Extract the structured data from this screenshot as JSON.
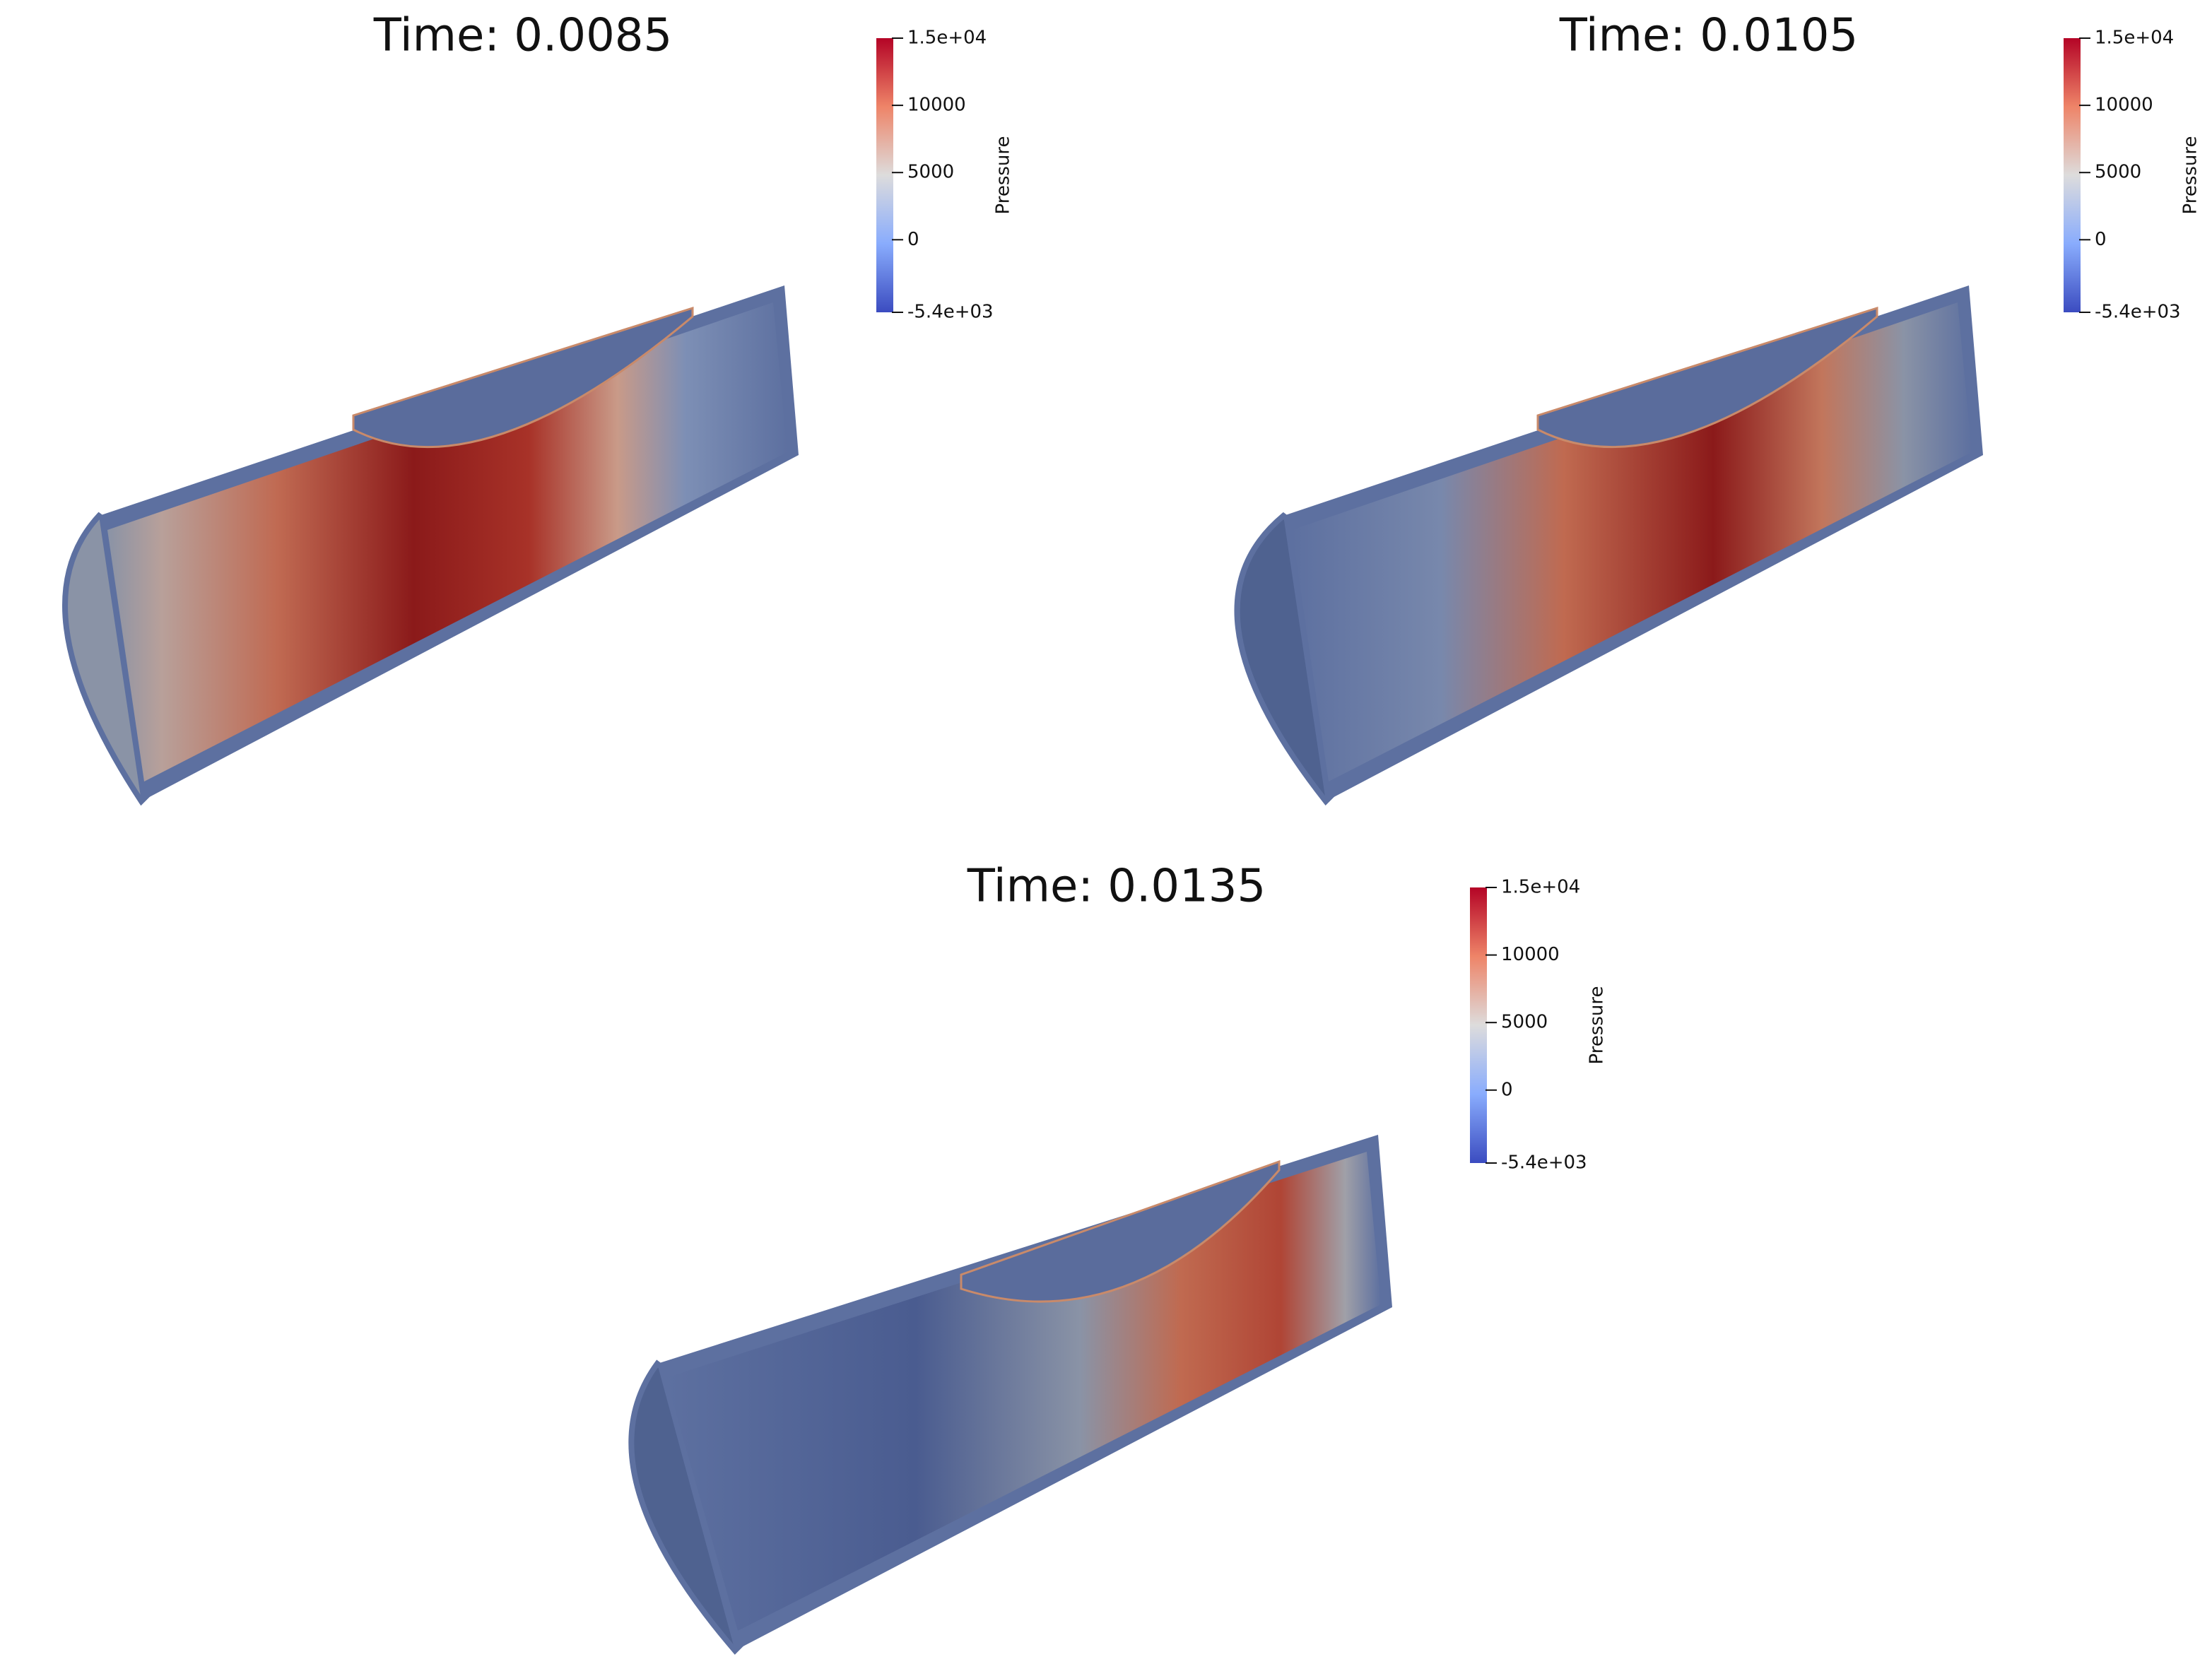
{
  "panels": [
    {
      "title": "Time: 0.0085",
      "colorbar": {
        "title": "Pressure",
        "range": [
          -5400,
          15000
        ],
        "ticks": [
          {
            "value": 15000,
            "label": "1.5e+04"
          },
          10000,
          5000,
          0,
          {
            "value": -5400,
            "label": "-5.4e+03"
          }
        ]
      }
    },
    {
      "title": "Time: 0.0105",
      "colorbar": {
        "title": "Pressure",
        "range": [
          -5400,
          15000
        ],
        "ticks": [
          {
            "value": 15000,
            "label": "1.5e+04"
          },
          10000,
          5000,
          0,
          {
            "value": -5400,
            "label": "-5.4e+03"
          }
        ]
      }
    },
    {
      "title": "Time: 0.0135",
      "colorbar": {
        "title": "Pressure",
        "range": [
          -5400,
          15000
        ],
        "ticks": [
          {
            "value": 15000,
            "label": "1.5e+04"
          },
          10000,
          5000,
          0,
          {
            "value": -5400,
            "label": "-5.4e+03"
          }
        ]
      }
    }
  ]
}
